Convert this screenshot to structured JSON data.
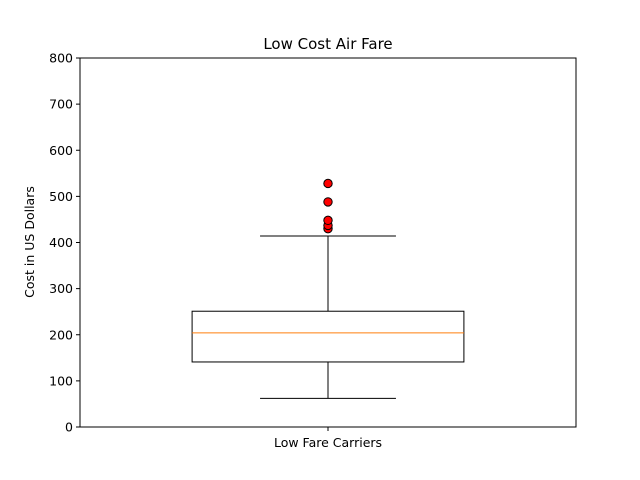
{
  "chart_data": {
    "type": "box",
    "title": "Low Cost Air Fare",
    "xlabel": "",
    "ylabel": "Cost in US Dollars",
    "categories": [
      "Low Fare Carriers"
    ],
    "ylim": [
      0,
      800
    ],
    "yticks": [
      0,
      100,
      200,
      300,
      400,
      500,
      600,
      700,
      800
    ],
    "grid": false,
    "boxes": [
      {
        "category": "Low Fare Carriers",
        "whisker_low": 62,
        "q1": 141,
        "median": 204,
        "q3": 251,
        "whisker_high": 414,
        "outliers": [
          430,
          437,
          448,
          488,
          528
        ]
      }
    ],
    "colors": {
      "box": "#000000",
      "median": "#ff7f0e",
      "outlier_fill": "#ff0000",
      "outlier_edge": "#000000"
    }
  }
}
